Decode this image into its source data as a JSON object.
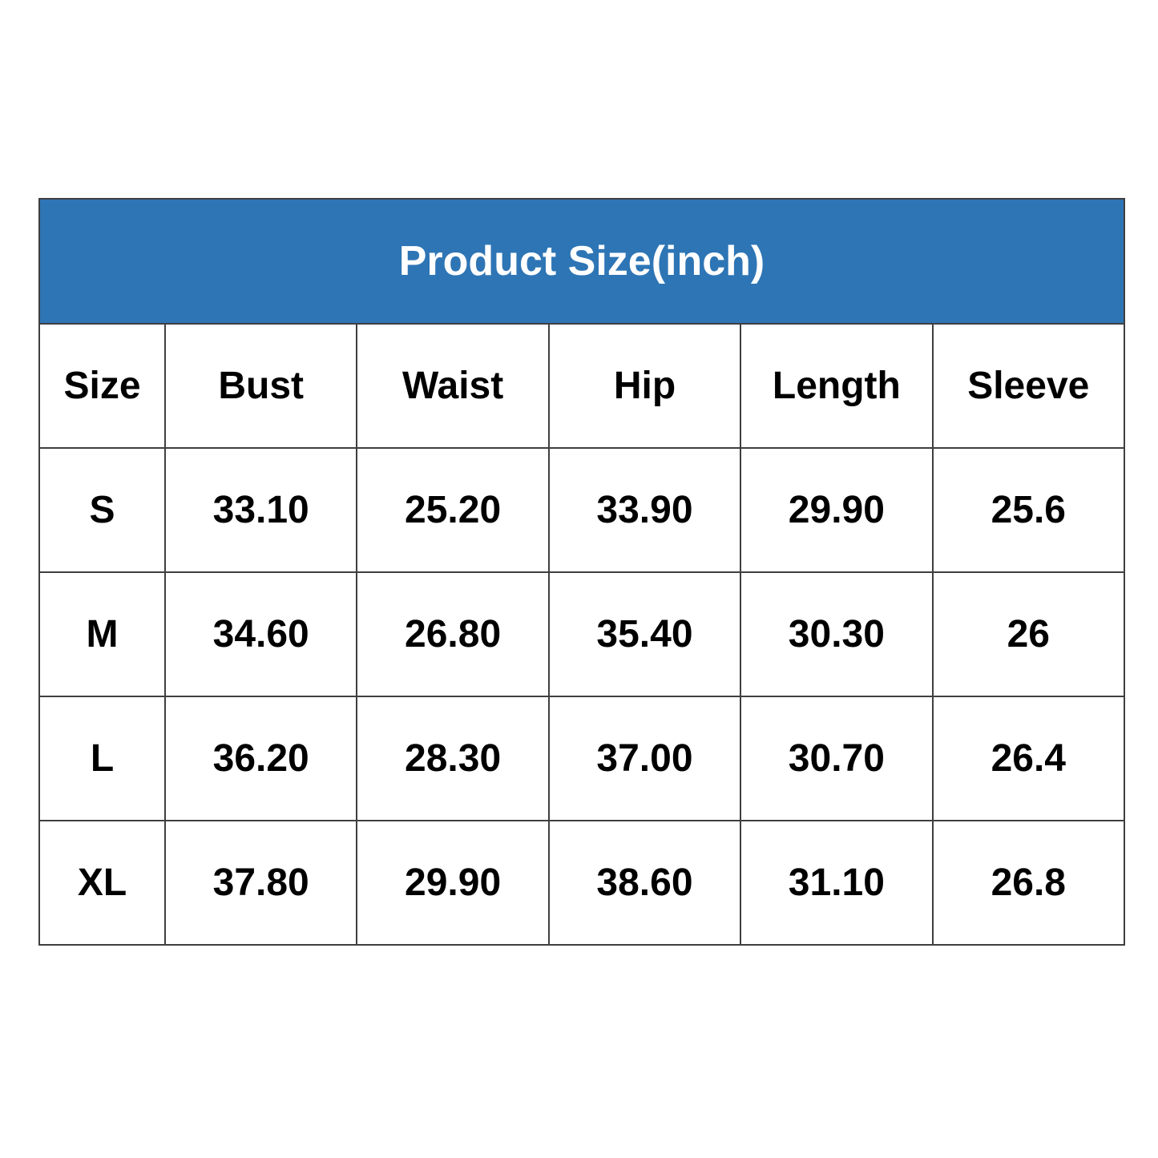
{
  "table": {
    "title": "Product Size(inch)",
    "columns": [
      "Size",
      "Bust",
      "Waist",
      "Hip",
      "Length",
      "Sleeve"
    ],
    "rows": [
      {
        "size": "S",
        "values": [
          "33.10",
          "25.20",
          "33.90",
          "29.90",
          "25.6"
        ]
      },
      {
        "size": "M",
        "values": [
          "34.60",
          "26.80",
          "35.40",
          "30.30",
          "26"
        ]
      },
      {
        "size": "L",
        "values": [
          "36.20",
          "28.30",
          "37.00",
          "30.70",
          "26.4"
        ]
      },
      {
        "size": "XL",
        "values": [
          "37.80",
          "29.90",
          "38.60",
          "31.10",
          "26.8"
        ]
      }
    ]
  },
  "colors": {
    "header_background": "#2e75b5",
    "header_text": "#ffffff",
    "border": "#3f3f3f",
    "cell_text": "#000000",
    "page_background": "#ffffff"
  },
  "chart_data": {
    "type": "table",
    "title": "Product Size(inch)",
    "units": "inch",
    "columns": [
      "Size",
      "Bust",
      "Waist",
      "Hip",
      "Length",
      "Sleeve"
    ],
    "rows": [
      [
        "S",
        33.1,
        25.2,
        33.9,
        29.9,
        25.6
      ],
      [
        "M",
        34.6,
        26.8,
        35.4,
        30.3,
        26
      ],
      [
        "L",
        36.2,
        28.3,
        37.0,
        30.7,
        26.4
      ],
      [
        "XL",
        37.8,
        29.9,
        38.6,
        31.1,
        26.8
      ]
    ],
    "legend_position": "none",
    "grid": true
  }
}
